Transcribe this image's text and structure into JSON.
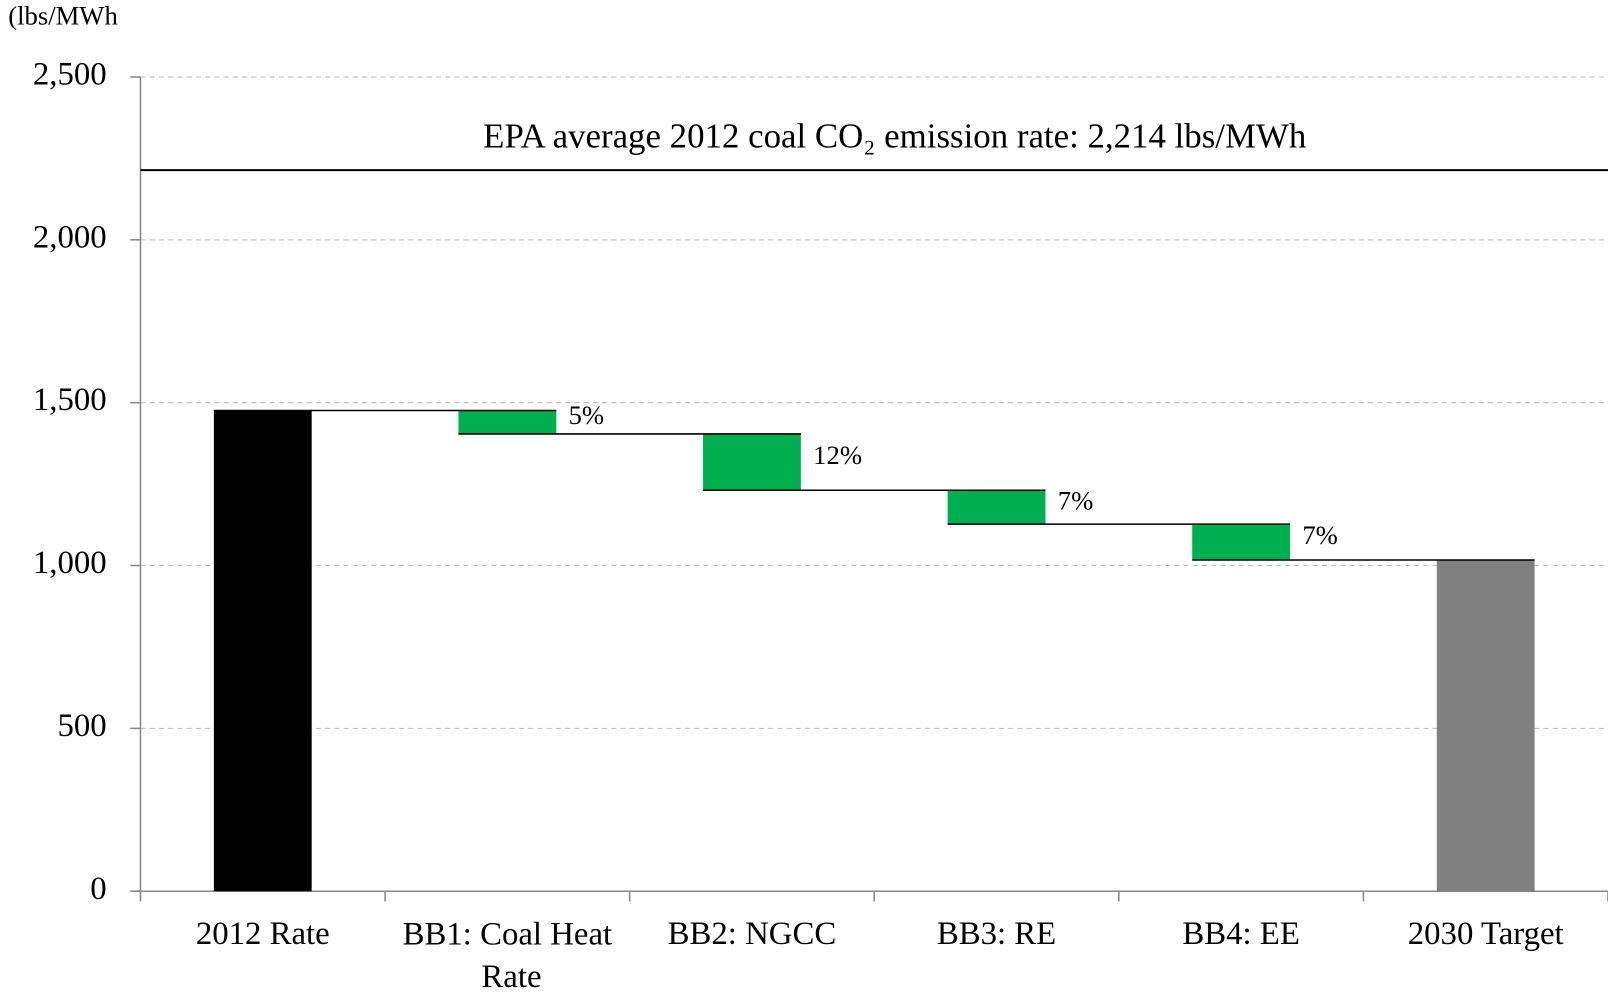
{
  "chart_data": {
    "type": "waterfall",
    "y_axis_label": "(lbs/MWh",
    "categories": [
      "2012 Rate",
      "BB1: Coal Heat Rate",
      "BB2: NGCC",
      "BB3: RE",
      "BB4: EE",
      "2030 Target"
    ],
    "values": [
      1476,
      -72,
      -173,
      -104,
      -110,
      1017
    ],
    "measure": [
      "absolute",
      "relative",
      "relative",
      "relative",
      "relative",
      "total"
    ],
    "colors": [
      "#000000",
      "#00b050",
      "#00b050",
      "#00b050",
      "#00b050",
      "#808080"
    ],
    "annotations": [
      null,
      "5%",
      "12%",
      "7%",
      "7%",
      null
    ],
    "reference_line": {
      "value": 2214,
      "label": "EPA average 2012 coal CO₂ emission rate: 2,214 lbs/MWh",
      "color": "#000000"
    },
    "ylim": [
      0,
      2500
    ],
    "yticks": [
      0,
      500,
      {
        "value": 1000,
        "label": "1,000"
      },
      {
        "value": 1500,
        "label": "1,500"
      },
      {
        "value": 2000,
        "label": "2,000"
      },
      {
        "value": 2500,
        "label": "2,500"
      }
    ],
    "grid": true
  }
}
